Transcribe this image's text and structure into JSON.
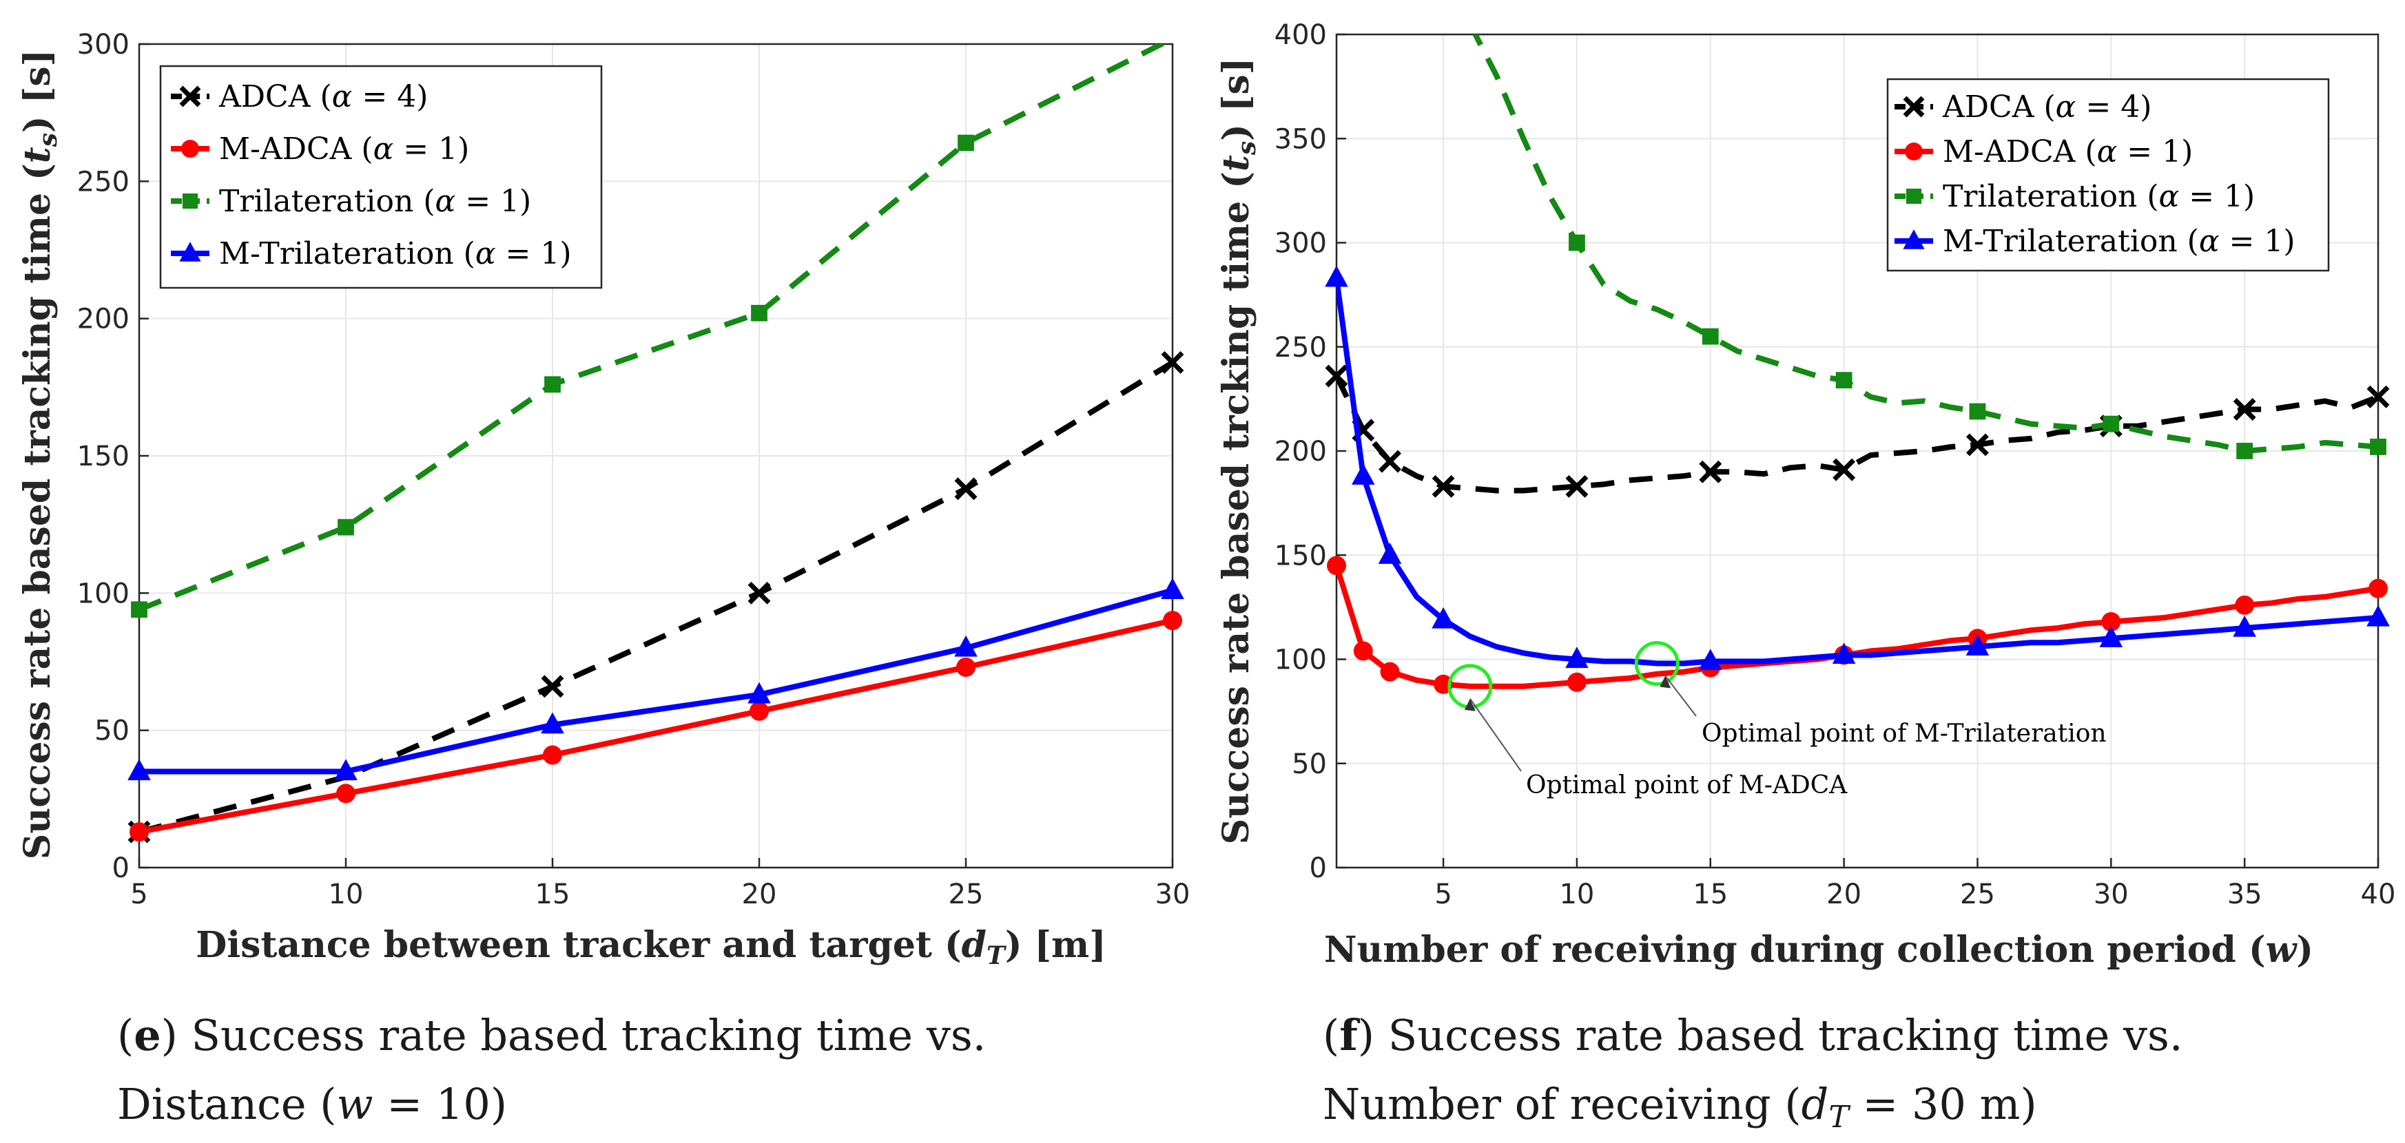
{
  "chart_data": [
    {
      "type": "line",
      "panel": "e",
      "xlabel": "Distance between tracker and target (d_T) [m]",
      "ylabel": "Success rate based tracking time (t_s) [s]",
      "xlim": [
        5,
        30
      ],
      "ylim": [
        0,
        300
      ],
      "xticks": [
        "5",
        "10",
        "15",
        "20",
        "25",
        "30"
      ],
      "yticks": [
        "0",
        "50",
        "100",
        "150",
        "200",
        "250",
        "300"
      ],
      "legend_position": "top-left",
      "series": [
        {
          "name": "ADCA (α = 4)",
          "color": "#000000",
          "dash": "dashed",
          "marker": "x",
          "line": [
            [
              5,
              13
            ],
            [
              10,
              33
            ],
            [
              15,
              66
            ],
            [
              20,
              100
            ],
            [
              25,
              138
            ],
            [
              30,
              184
            ]
          ],
          "markers": [
            [
              5,
              13
            ],
            [
              15,
              66
            ],
            [
              20,
              100
            ],
            [
              25,
              138
            ],
            [
              30,
              184
            ]
          ]
        },
        {
          "name": "M-ADCA (α = 1)",
          "color": "#ff0000",
          "dash": "solid",
          "marker": "circle",
          "line": [
            [
              5,
              13
            ],
            [
              10,
              27
            ],
            [
              15,
              41
            ],
            [
              20,
              57
            ],
            [
              25,
              73
            ],
            [
              30,
              90
            ]
          ],
          "markers": [
            [
              5,
              13
            ],
            [
              10,
              27
            ],
            [
              15,
              41
            ],
            [
              20,
              57
            ],
            [
              25,
              73
            ],
            [
              30,
              90
            ]
          ]
        },
        {
          "name": "Trilateration (α = 1)",
          "color": "#138a13",
          "dash": "dashed",
          "marker": "square",
          "line": [
            [
              5,
              94
            ],
            [
              10,
              124
            ],
            [
              15,
              176
            ],
            [
              20,
              202
            ],
            [
              25,
              264
            ],
            [
              30,
              302
            ]
          ],
          "markers": [
            [
              5,
              94
            ],
            [
              10,
              124
            ],
            [
              15,
              176
            ],
            [
              20,
              202
            ],
            [
              25,
              264
            ]
          ]
        },
        {
          "name": "M-Trilateration (α = 1)",
          "color": "#0000ff",
          "dash": "solid",
          "marker": "triangle",
          "line": [
            [
              5,
              35
            ],
            [
              10,
              35
            ],
            [
              15,
              52
            ],
            [
              20,
              63
            ],
            [
              25,
              80
            ],
            [
              30,
              101
            ]
          ],
          "markers": [
            [
              5,
              35
            ],
            [
              10,
              35
            ],
            [
              15,
              52
            ],
            [
              20,
              63
            ],
            [
              25,
              80
            ],
            [
              30,
              101
            ]
          ]
        }
      ],
      "caption": {
        "letter": "e",
        "line1": "Success rate based tracking time vs.",
        "line2": "Distance (w = 10)"
      }
    },
    {
      "type": "line",
      "panel": "f",
      "xlabel": "Number of receiving during collection period (w)",
      "ylabel": "Success rate based trcking time (t_s) [s]",
      "xlim": [
        1,
        40
      ],
      "ylim": [
        0,
        400
      ],
      "xticks": [
        "5",
        "10",
        "15",
        "20",
        "25",
        "30",
        "35",
        "40"
      ],
      "yticks": [
        "0",
        "50",
        "100",
        "150",
        "200",
        "250",
        "300",
        "350",
        "400"
      ],
      "legend_position": "top-right",
      "series": [
        {
          "name": "ADCA (α = 4)",
          "color": "#000000",
          "dash": "dashed",
          "marker": "x",
          "line": [
            [
              1,
              236
            ],
            [
              2,
              210
            ],
            [
              3,
              195
            ],
            [
              4,
              188
            ],
            [
              5,
              183
            ],
            [
              6,
              182
            ],
            [
              7,
              181
            ],
            [
              8,
              181
            ],
            [
              9,
              182
            ],
            [
              10,
              183
            ],
            [
              11,
              184
            ],
            [
              12,
              186
            ],
            [
              13,
              187
            ],
            [
              14,
              188
            ],
            [
              15,
              190
            ],
            [
              16,
              190
            ],
            [
              17,
              189
            ],
            [
              18,
              192
            ],
            [
              19,
              193
            ],
            [
              20,
              191
            ],
            [
              21,
              198
            ],
            [
              22,
              199
            ],
            [
              23,
              200
            ],
            [
              24,
              202
            ],
            [
              25,
              203
            ],
            [
              26,
              205
            ],
            [
              27,
              206
            ],
            [
              28,
              209
            ],
            [
              29,
              210
            ],
            [
              30,
              212
            ],
            [
              31,
              212
            ],
            [
              32,
              214
            ],
            [
              33,
              216
            ],
            [
              34,
              218
            ],
            [
              35,
              220
            ],
            [
              36,
              220
            ],
            [
              37,
              222
            ],
            [
              38,
              224
            ],
            [
              39,
              221
            ],
            [
              40,
              226
            ]
          ],
          "markers": [
            [
              1,
              236
            ],
            [
              2,
              210
            ],
            [
              3,
              195
            ],
            [
              5,
              183
            ],
            [
              10,
              183
            ],
            [
              15,
              190
            ],
            [
              20,
              191
            ],
            [
              25,
              203
            ],
            [
              30,
              212
            ],
            [
              35,
              220
            ],
            [
              40,
              226
            ]
          ]
        },
        {
          "name": "M-ADCA (α = 1)",
          "color": "#ff0000",
          "dash": "solid",
          "marker": "circle",
          "line": [
            [
              1,
              145
            ],
            [
              2,
              104
            ],
            [
              3,
              94
            ],
            [
              4,
              90
            ],
            [
              5,
              88
            ],
            [
              6,
              87
            ],
            [
              7,
              87
            ],
            [
              8,
              87
            ],
            [
              9,
              88
            ],
            [
              10,
              89
            ],
            [
              11,
              90
            ],
            [
              12,
              91
            ],
            [
              13,
              93
            ],
            [
              14,
              94
            ],
            [
              15,
              96
            ],
            [
              16,
              97
            ],
            [
              17,
              98
            ],
            [
              18,
              99
            ],
            [
              19,
              100
            ],
            [
              20,
              102
            ],
            [
              21,
              104
            ],
            [
              22,
              105
            ],
            [
              23,
              107
            ],
            [
              24,
              109
            ],
            [
              25,
              110
            ],
            [
              26,
              112
            ],
            [
              27,
              114
            ],
            [
              28,
              115
            ],
            [
              29,
              117
            ],
            [
              30,
              118
            ],
            [
              31,
              119
            ],
            [
              32,
              120
            ],
            [
              33,
              122
            ],
            [
              34,
              124
            ],
            [
              35,
              126
            ],
            [
              36,
              127
            ],
            [
              37,
              129
            ],
            [
              38,
              130
            ],
            [
              39,
              132
            ],
            [
              40,
              134
            ]
          ],
          "markers": [
            [
              1,
              145
            ],
            [
              2,
              104
            ],
            [
              3,
              94
            ],
            [
              5,
              88
            ],
            [
              10,
              89
            ],
            [
              15,
              96
            ],
            [
              20,
              102
            ],
            [
              25,
              110
            ],
            [
              30,
              118
            ],
            [
              35,
              126
            ],
            [
              40,
              134
            ]
          ]
        },
        {
          "name": "Trilateration (α = 1)",
          "color": "#138a13",
          "dash": "dashed",
          "marker": "square",
          "line": [
            [
              6,
              405
            ],
            [
              7,
              380
            ],
            [
              8,
              350
            ],
            [
              9,
              322
            ],
            [
              10,
              300
            ],
            [
              11,
              280
            ],
            [
              12,
              272
            ],
            [
              13,
              268
            ],
            [
              14,
              262
            ],
            [
              15,
              255
            ],
            [
              16,
              248
            ],
            [
              17,
              244
            ],
            [
              18,
              240
            ],
            [
              19,
              236
            ],
            [
              20,
              234
            ],
            [
              21,
              226
            ],
            [
              22,
              223
            ],
            [
              23,
              224
            ],
            [
              24,
              221
            ],
            [
              25,
              219
            ],
            [
              26,
              216
            ],
            [
              27,
              213
            ],
            [
              28,
              212
            ],
            [
              29,
              211
            ],
            [
              30,
              213
            ],
            [
              31,
              210
            ],
            [
              32,
              207
            ],
            [
              33,
              205
            ],
            [
              34,
              203
            ],
            [
              35,
              200
            ],
            [
              36,
              201
            ],
            [
              37,
              202
            ],
            [
              38,
              204
            ],
            [
              39,
              203
            ],
            [
              40,
              202
            ]
          ],
          "markers": [
            [
              10,
              300
            ],
            [
              15,
              255
            ],
            [
              20,
              234
            ],
            [
              25,
              219
            ],
            [
              30,
              213
            ],
            [
              35,
              200
            ],
            [
              40,
              202
            ]
          ]
        },
        {
          "name": "M-Trilateration (α = 1)",
          "color": "#0000ff",
          "dash": "solid",
          "marker": "triangle",
          "line": [
            [
              1,
              283
            ],
            [
              2,
              188
            ],
            [
              3,
              150
            ],
            [
              4,
              130
            ],
            [
              5,
              119
            ],
            [
              6,
              111
            ],
            [
              7,
              106
            ],
            [
              8,
              103
            ],
            [
              9,
              101
            ],
            [
              10,
              100
            ],
            [
              11,
              99
            ],
            [
              12,
              99
            ],
            [
              13,
              98
            ],
            [
              14,
              98
            ],
            [
              15,
              99
            ],
            [
              16,
              99
            ],
            [
              17,
              99
            ],
            [
              18,
              100
            ],
            [
              19,
              101
            ],
            [
              20,
              102
            ],
            [
              21,
              102
            ],
            [
              22,
              103
            ],
            [
              23,
              104
            ],
            [
              24,
              105
            ],
            [
              25,
              106
            ],
            [
              26,
              107
            ],
            [
              27,
              108
            ],
            [
              28,
              108
            ],
            [
              29,
              109
            ],
            [
              30,
              110
            ],
            [
              31,
              111
            ],
            [
              32,
              112
            ],
            [
              33,
              113
            ],
            [
              34,
              114
            ],
            [
              35,
              115
            ],
            [
              36,
              116
            ],
            [
              37,
              117
            ],
            [
              38,
              118
            ],
            [
              39,
              119
            ],
            [
              40,
              120
            ]
          ],
          "markers": [
            [
              1,
              283
            ],
            [
              2,
              188
            ],
            [
              3,
              150
            ],
            [
              5,
              119
            ],
            [
              10,
              100
            ],
            [
              15,
              99
            ],
            [
              20,
              102
            ],
            [
              25,
              106
            ],
            [
              30,
              110
            ],
            [
              35,
              115
            ],
            [
              40,
              120
            ]
          ]
        }
      ],
      "annotations": [
        {
          "label": "Optimal point of M-Trilateration",
          "point": [
            13,
            98
          ]
        },
        {
          "label": "Optimal point of M-ADCA",
          "point": [
            6,
            87
          ]
        }
      ],
      "caption": {
        "letter": "f",
        "line1": "Success rate based tracking time vs.",
        "line2": "Number of receiving (d_T = 30 m)"
      }
    }
  ]
}
